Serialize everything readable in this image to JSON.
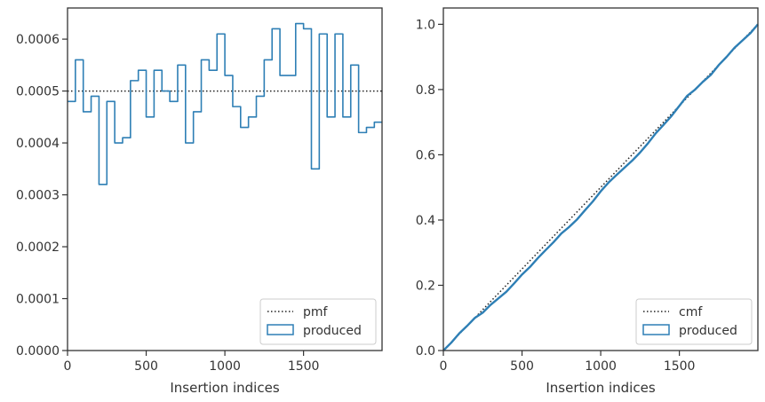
{
  "colors": {
    "produced": "#2e7fb5",
    "reference": "#222222",
    "frame": "#333333"
  },
  "chart_data": [
    {
      "type": "step",
      "xlabel": "Insertion indices",
      "ylabel": "",
      "xlim": [
        0,
        1999
      ],
      "ylim": [
        0,
        0.00066
      ],
      "xticks": [
        0,
        500,
        1000,
        1500
      ],
      "xtick_labels": [
        "0",
        "500",
        "1000",
        "1500"
      ],
      "yticks": [
        0,
        0.0001,
        0.0002,
        0.0003,
        0.0004,
        0.0005,
        0.0006
      ],
      "ytick_labels": [
        "0.0000",
        "0.0001",
        "0.0002",
        "0.0003",
        "0.0004",
        "0.0005",
        "0.0006"
      ],
      "legend_position": "lower-right",
      "reference_line": {
        "name": "pmf",
        "y": 0.0005,
        "style": "dotted"
      },
      "series": [
        {
          "name": "produced",
          "bin_edges": [
            0,
            50,
            100,
            150,
            200,
            250,
            300,
            350,
            400,
            450,
            500,
            550,
            600,
            650,
            700,
            750,
            800,
            850,
            900,
            950,
            1000,
            1050,
            1100,
            1150,
            1200,
            1250,
            1300,
            1350,
            1400,
            1450,
            1500,
            1550,
            1600,
            1650,
            1700,
            1750,
            1800,
            1850,
            1900,
            1950,
            1999
          ],
          "values": [
            0.00048,
            0.00056,
            0.00046,
            0.00049,
            0.00032,
            0.00048,
            0.0004,
            0.00041,
            0.00052,
            0.00054,
            0.00045,
            0.00054,
            0.0005,
            0.00048,
            0.00055,
            0.0004,
            0.00046,
            0.00056,
            0.00054,
            0.00061,
            0.00053,
            0.00047,
            0.00043,
            0.00045,
            0.00049,
            0.00056,
            0.00062,
            0.00053,
            0.00053,
            0.00063,
            0.00062,
            0.00035,
            0.00061,
            0.00045,
            0.00061,
            0.00045,
            0.00055,
            0.00042,
            0.00043,
            0.00044
          ]
        }
      ]
    },
    {
      "type": "step",
      "xlabel": "Insertion indices",
      "ylabel": "",
      "xlim": [
        0,
        1999
      ],
      "ylim": [
        0,
        1.05
      ],
      "xticks": [
        0,
        500,
        1000,
        1500
      ],
      "xtick_labels": [
        "0",
        "500",
        "1000",
        "1500"
      ],
      "yticks": [
        0,
        0.2,
        0.4,
        0.6,
        0.8,
        1.0
      ],
      "ytick_labels": [
        "0.0",
        "0.2",
        "0.4",
        "0.6",
        "0.8",
        "1.0"
      ],
      "legend_position": "lower-right",
      "reference_line": {
        "name": "cmf",
        "from": [
          0,
          0
        ],
        "to": [
          1999,
          1.0
        ],
        "style": "dotted"
      },
      "series": [
        {
          "name": "produced",
          "x": [
            0,
            50,
            100,
            150,
            200,
            250,
            300,
            350,
            400,
            450,
            500,
            550,
            600,
            650,
            700,
            750,
            800,
            850,
            900,
            950,
            1000,
            1050,
            1100,
            1150,
            1200,
            1250,
            1300,
            1350,
            1400,
            1450,
            1500,
            1550,
            1600,
            1650,
            1700,
            1750,
            1800,
            1850,
            1900,
            1950,
            1999
          ],
          "y": [
            0,
            0.024,
            0.052,
            0.075,
            0.1,
            0.116,
            0.14,
            0.16,
            0.18,
            0.206,
            0.233,
            0.256,
            0.283,
            0.308,
            0.332,
            0.359,
            0.379,
            0.402,
            0.43,
            0.457,
            0.488,
            0.515,
            0.538,
            0.56,
            0.582,
            0.607,
            0.635,
            0.666,
            0.692,
            0.719,
            0.75,
            0.781,
            0.8,
            0.824,
            0.845,
            0.875,
            0.9,
            0.928,
            0.95,
            0.972,
            1.0
          ]
        }
      ]
    }
  ]
}
